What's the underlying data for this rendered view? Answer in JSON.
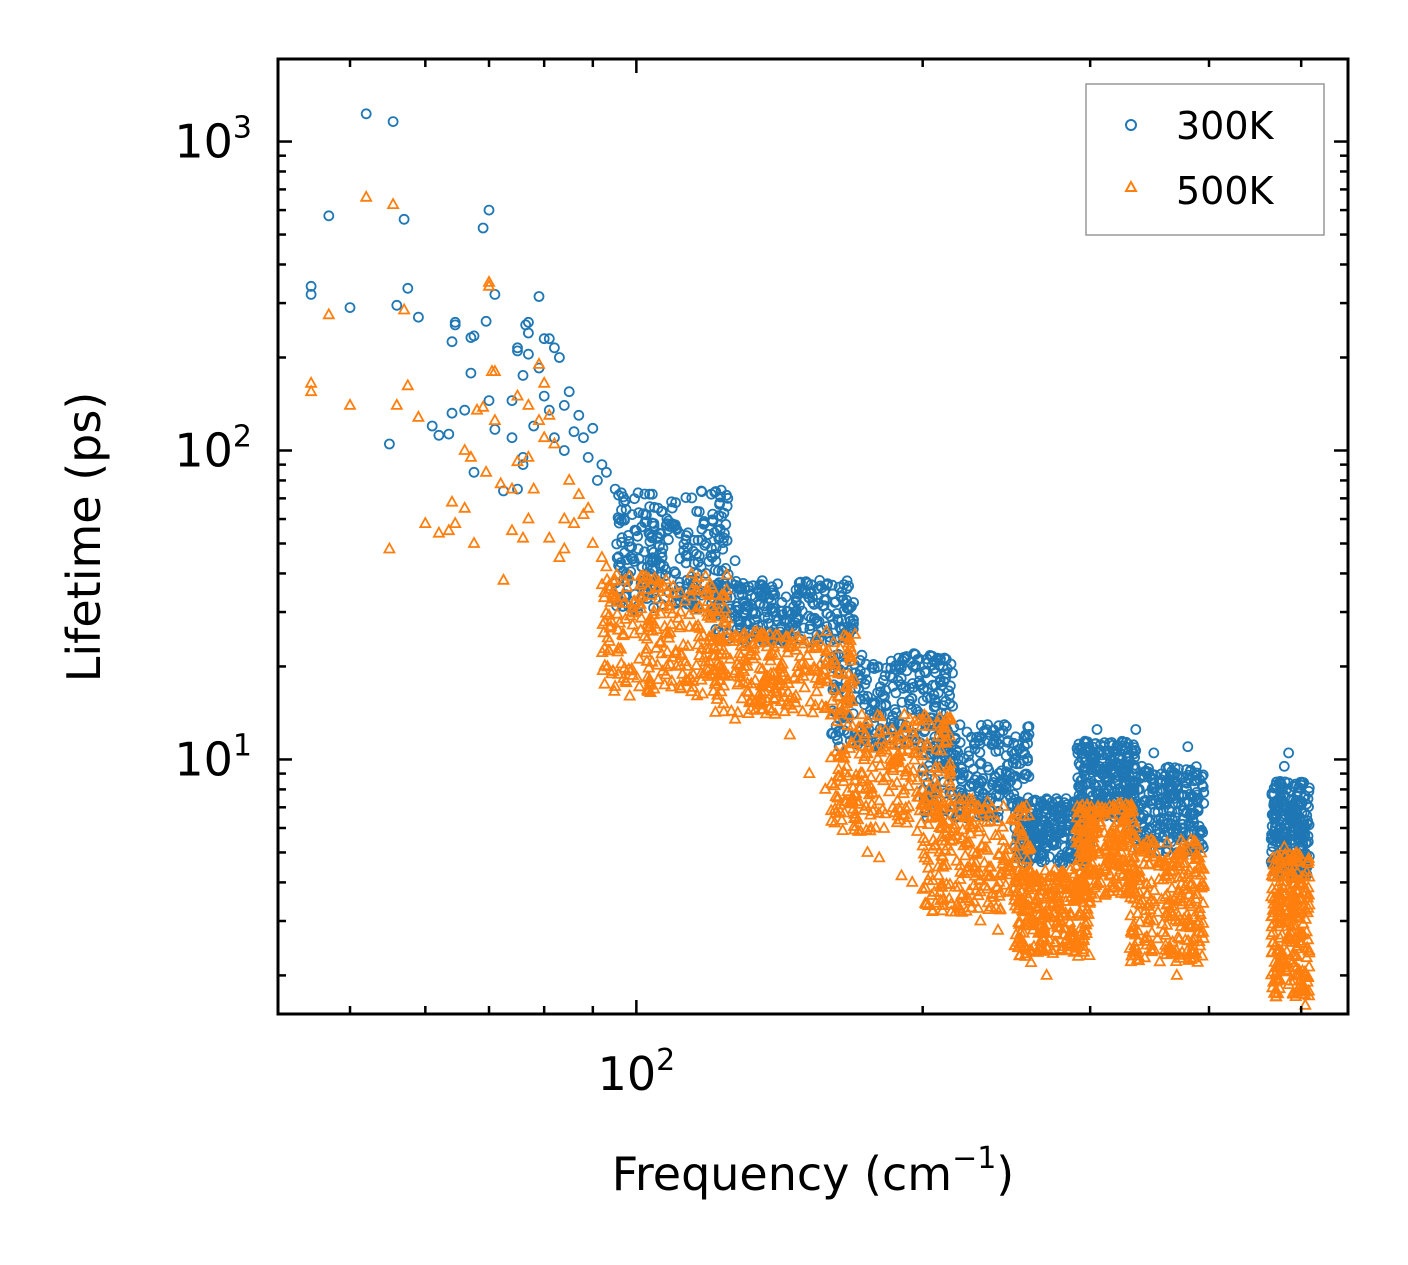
{
  "chart_data": {
    "type": "scatter",
    "title": "",
    "xlabel": "Frequency (cm",
    "xlabel_sup": "−1",
    "xlabel_suffix": ")",
    "ylabel": "Lifetime (ps)",
    "xscale": "log",
    "yscale": "log",
    "xlim": [
      42,
      560
    ],
    "ylim": [
      1.5,
      1850
    ],
    "x_ticks": [
      {
        "value": 100,
        "base": "10",
        "exp": "2"
      }
    ],
    "y_ticks": [
      {
        "value": 10,
        "base": "10",
        "exp": "1"
      },
      {
        "value": 100,
        "base": "10",
        "exp": "2"
      },
      {
        "value": 1000,
        "base": "10",
        "exp": "3"
      }
    ],
    "legend": {
      "position": "top-right"
    },
    "series": [
      {
        "name": "300K",
        "marker": "circle",
        "color": "#1f77b4",
        "points": [
          [
            45.5,
            340
          ],
          [
            45.5,
            320
          ],
          [
            47.5,
            575
          ],
          [
            50,
            290
          ],
          [
            52,
            1230
          ],
          [
            55,
            105
          ],
          [
            55.5,
            1160
          ],
          [
            56,
            295
          ],
          [
            57,
            560
          ],
          [
            57.5,
            335
          ],
          [
            59,
            270
          ],
          [
            61,
            120
          ],
          [
            62,
            112
          ],
          [
            63.5,
            113
          ],
          [
            64,
            225
          ],
          [
            64.5,
            260
          ],
          [
            64.5,
            255
          ],
          [
            64,
            132
          ],
          [
            66,
            135
          ],
          [
            67,
            178
          ],
          [
            67,
            232
          ],
          [
            67.5,
            235
          ],
          [
            67.5,
            85
          ],
          [
            69,
            525
          ],
          [
            69.5,
            262
          ],
          [
            70,
            600
          ],
          [
            70,
            145
          ],
          [
            71,
            320
          ],
          [
            71,
            117
          ],
          [
            72.5,
            74
          ],
          [
            74,
            110
          ],
          [
            74,
            145
          ],
          [
            75,
            210
          ],
          [
            75,
            215
          ],
          [
            75,
            75
          ],
          [
            76,
            175
          ],
          [
            76,
            95
          ],
          [
            76,
            90
          ],
          [
            76.5,
            255
          ],
          [
            77,
            240
          ],
          [
            77,
            205
          ],
          [
            77,
            260
          ],
          [
            78,
            120
          ],
          [
            79,
            185
          ],
          [
            79,
            315
          ],
          [
            80,
            230
          ],
          [
            80,
            150
          ],
          [
            81,
            230
          ],
          [
            81,
            135
          ],
          [
            82,
            215
          ],
          [
            82,
            110
          ],
          [
            83,
            200
          ],
          [
            84,
            140
          ],
          [
            84,
            100
          ],
          [
            85,
            155
          ],
          [
            86,
            115
          ],
          [
            87,
            130
          ],
          [
            88,
            110
          ],
          [
            89,
            95
          ],
          [
            90,
            118
          ],
          [
            91,
            80
          ],
          [
            92,
            90
          ],
          [
            93,
            85
          ],
          [
            95,
            75
          ],
          [
            97,
            68
          ],
          [
            99,
            62
          ],
          [
            100,
            55
          ],
          [
            102,
            47
          ],
          [
            104,
            45
          ],
          [
            106,
            43
          ],
          [
            109,
            58
          ],
          [
            110,
            40
          ],
          [
            113,
            38
          ],
          [
            117,
            42
          ],
          [
            120,
            32
          ],
          [
            123,
            35
          ],
          [
            127,
            44
          ],
          [
            130,
            36
          ],
          [
            135,
            32
          ],
          [
            140,
            30
          ],
          [
            143,
            28
          ],
          [
            147,
            30
          ],
          [
            152,
            24
          ],
          [
            158,
            21
          ],
          [
            163,
            19
          ],
          [
            170,
            17
          ],
          [
            175,
            16
          ],
          [
            180,
            14
          ],
          [
            185,
            12.5
          ],
          [
            190,
            13
          ],
          [
            195,
            12
          ],
          [
            200,
            10.5
          ],
          [
            210,
            9.5
          ],
          [
            220,
            8.5
          ],
          [
            230,
            7.2
          ],
          [
            240,
            6.5
          ],
          [
            250,
            6
          ],
          [
            260,
            5.4
          ],
          [
            270,
            5.2
          ],
          [
            280,
            4.9
          ],
          [
            290,
            5.5
          ],
          [
            295,
            7.5
          ],
          [
            300,
            9.5
          ],
          [
            305,
            12.5
          ],
          [
            310,
            11
          ],
          [
            320,
            9.5
          ],
          [
            330,
            8.5
          ],
          [
            335,
            12.5
          ],
          [
            340,
            9.5
          ],
          [
            350,
            10.5
          ],
          [
            360,
            7.5
          ],
          [
            370,
            8.2
          ],
          [
            380,
            11
          ],
          [
            390,
            7.5
          ],
          [
            470,
            6
          ],
          [
            475,
            7.5
          ],
          [
            480,
            9.5
          ],
          [
            485,
            10.5
          ],
          [
            490,
            8.2
          ],
          [
            495,
            6.5
          ],
          [
            500,
            5.8
          ],
          [
            505,
            4.5
          ]
        ],
        "bands": [
          [
            95,
            125,
            30,
            75
          ],
          [
            120,
            170,
            24,
            38
          ],
          [
            160,
            215,
            11,
            22
          ],
          [
            200,
            260,
            6.4,
            13
          ],
          [
            250,
            300,
            4.6,
            7.5
          ],
          [
            290,
            335,
            6.5,
            11.5
          ],
          [
            330,
            395,
            5,
            9.5
          ],
          [
            465,
            510,
            4.2,
            8.5
          ]
        ]
      },
      {
        "name": "500K",
        "marker": "triangle",
        "color": "#ff7f0e",
        "points": [
          [
            45.5,
            165
          ],
          [
            45.5,
            155
          ],
          [
            47.5,
            275
          ],
          [
            50,
            140
          ],
          [
            52,
            660
          ],
          [
            55,
            48
          ],
          [
            55.5,
            625
          ],
          [
            56,
            140
          ],
          [
            57,
            285
          ],
          [
            57.5,
            162
          ],
          [
            59,
            128
          ],
          [
            60,
            58
          ],
          [
            62,
            54
          ],
          [
            63.5,
            55
          ],
          [
            64,
            68
          ],
          [
            64.5,
            58
          ],
          [
            66,
            65
          ],
          [
            66,
            100
          ],
          [
            67,
            95
          ],
          [
            67.5,
            50
          ],
          [
            68,
            135
          ],
          [
            69,
            138
          ],
          [
            69.5,
            85
          ],
          [
            70,
            350
          ],
          [
            70,
            340
          ],
          [
            70.5,
            180
          ],
          [
            71,
            180
          ],
          [
            71,
            125
          ],
          [
            72,
            78
          ],
          [
            72.5,
            38
          ],
          [
            74,
            55
          ],
          [
            74,
            75
          ],
          [
            75,
            150
          ],
          [
            75,
            92
          ],
          [
            76,
            52
          ],
          [
            77,
            140
          ],
          [
            77,
            95
          ],
          [
            77,
            60
          ],
          [
            78,
            75
          ],
          [
            79,
            190
          ],
          [
            79,
            125
          ],
          [
            80,
            165
          ],
          [
            80,
            110
          ],
          [
            81,
            130
          ],
          [
            81,
            52
          ],
          [
            82,
            105
          ],
          [
            83,
            45
          ],
          [
            84,
            60
          ],
          [
            84,
            48
          ],
          [
            85,
            80
          ],
          [
            86,
            58
          ],
          [
            87,
            72
          ],
          [
            88,
            62
          ],
          [
            89,
            65
          ],
          [
            90,
            50
          ],
          [
            92,
            45
          ],
          [
            93,
            42
          ],
          [
            95,
            38
          ],
          [
            97,
            32
          ],
          [
            99,
            30
          ],
          [
            102,
            25
          ],
          [
            104,
            26
          ],
          [
            106,
            24
          ],
          [
            110,
            22
          ],
          [
            113,
            20
          ],
          [
            117,
            19
          ],
          [
            120,
            25
          ],
          [
            123,
            22
          ],
          [
            127,
            13.5
          ],
          [
            130,
            20
          ],
          [
            135,
            15
          ],
          [
            140,
            14
          ],
          [
            145,
            12
          ],
          [
            152,
            9
          ],
          [
            158,
            8
          ],
          [
            163,
            7.5
          ],
          [
            170,
            6.5
          ],
          [
            175,
            5
          ],
          [
            180,
            4.8
          ],
          [
            190,
            4.2
          ],
          [
            195,
            4
          ],
          [
            200,
            3.8
          ],
          [
            210,
            3.5
          ],
          [
            220,
            3.2
          ],
          [
            230,
            3
          ],
          [
            240,
            2.8
          ],
          [
            250,
            2.5
          ],
          [
            260,
            2.2
          ],
          [
            270,
            2
          ],
          [
            280,
            2.4
          ],
          [
            290,
            3.5
          ],
          [
            300,
            5
          ],
          [
            305,
            6
          ],
          [
            310,
            4.5
          ],
          [
            320,
            5.5
          ],
          [
            330,
            4
          ],
          [
            335,
            6
          ],
          [
            340,
            3.5
          ],
          [
            350,
            3
          ],
          [
            360,
            2.5
          ],
          [
            370,
            2
          ],
          [
            380,
            3.8
          ],
          [
            390,
            3
          ],
          [
            470,
            2.5
          ],
          [
            475,
            3.5
          ],
          [
            480,
            5.2
          ],
          [
            485,
            4.2
          ],
          [
            490,
            3.2
          ],
          [
            495,
            2.3
          ],
          [
            500,
            1.8
          ],
          [
            505,
            1.6
          ]
        ],
        "bands": [
          [
            92,
            125,
            16,
            40
          ],
          [
            120,
            170,
            14,
            26
          ],
          [
            160,
            215,
            5.8,
            14
          ],
          [
            200,
            260,
            3.2,
            7.5
          ],
          [
            250,
            300,
            2.3,
            4.4
          ],
          [
            290,
            335,
            3.5,
            7.2
          ],
          [
            330,
            395,
            2.2,
            5.5
          ],
          [
            465,
            510,
            1.7,
            5
          ]
        ]
      }
    ]
  }
}
